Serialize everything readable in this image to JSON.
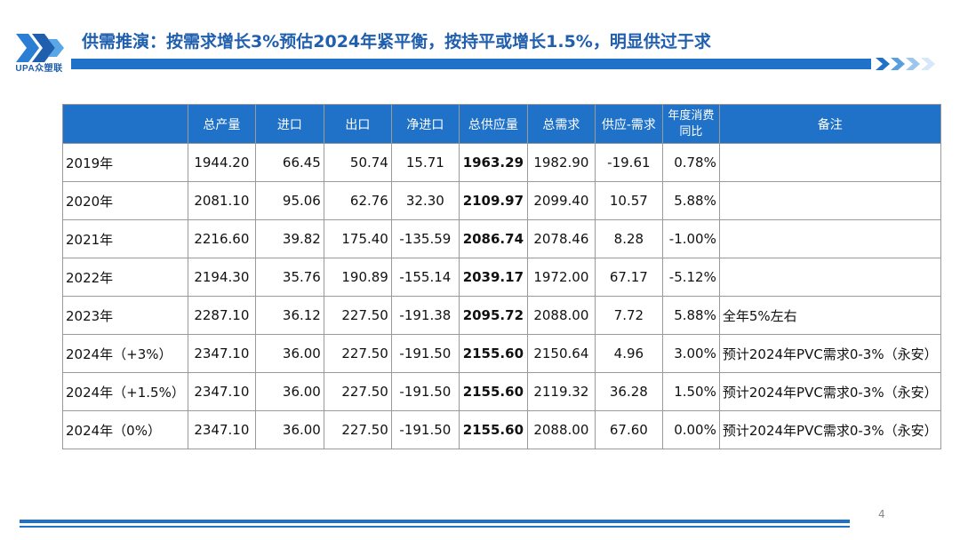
{
  "logo": {
    "text": "UPA众塑联",
    "brand_color": "#1f5fae"
  },
  "title": "供需推演：按需求增长3%预估2024年紧平衡，按持平或增长1.5%，明显供过于求",
  "accent_color": "#1f72c7",
  "table": {
    "headers": [
      "",
      "总产量",
      "进口",
      "出口",
      "净进口",
      "总供应量",
      "总需求",
      "供应-需求",
      "年度消费同比",
      "备注"
    ],
    "header_wrapped": {
      "line1": "年度消费",
      "line2": "同比"
    },
    "rows": [
      {
        "year": "2019年",
        "output": "1944.20",
        "import": "66.45",
        "export": "50.74",
        "net_import": "15.71",
        "supply": "1963.29",
        "demand": "1982.90",
        "gap": "-19.61",
        "yoy": "0.78%",
        "note": ""
      },
      {
        "year": "2020年",
        "output": "2081.10",
        "import": "95.06",
        "export": "62.76",
        "net_import": "32.30",
        "supply": "2109.97",
        "demand": "2099.40",
        "gap": "10.57",
        "yoy": "5.88%",
        "note": ""
      },
      {
        "year": "2021年",
        "output": "2216.60",
        "import": "39.82",
        "export": "175.40",
        "net_import": "-135.59",
        "supply": "2086.74",
        "demand": "2078.46",
        "gap": "8.28",
        "yoy": "-1.00%",
        "note": ""
      },
      {
        "year": "2022年",
        "output": "2194.30",
        "import": "35.76",
        "export": "190.89",
        "net_import": "-155.14",
        "supply": "2039.17",
        "demand": "1972.00",
        "gap": "67.17",
        "yoy": "-5.12%",
        "note": ""
      },
      {
        "year": "2023年",
        "output": "2287.10",
        "import": "36.12",
        "export": "227.50",
        "net_import": "-191.38",
        "supply": "2095.72",
        "demand": "2088.00",
        "gap": "7.72",
        "yoy": "5.88%",
        "note": "全年5%左右"
      },
      {
        "year": "2024年（+3%）",
        "output": "2347.10",
        "import": "36.00",
        "export": "227.50",
        "net_import": "-191.50",
        "supply": "2155.60",
        "demand": "2150.64",
        "gap": "4.96",
        "yoy": "3.00%",
        "note": "预计2024年PVC需求0-3%（永安）"
      },
      {
        "year": "2024年（+1.5%）",
        "output": "2347.10",
        "import": "36.00",
        "export": "227.50",
        "net_import": "-191.50",
        "supply": "2155.60",
        "demand": "2119.32",
        "gap": "36.28",
        "yoy": "1.50%",
        "note": "预计2024年PVC需求0-3%（永安）"
      },
      {
        "year": "2024年（0%）",
        "output": "2347.10",
        "import": "36.00",
        "export": "227.50",
        "net_import": "-191.50",
        "supply": "2155.60",
        "demand": "2088.00",
        "gap": "67.60",
        "yoy": "0.00%",
        "note": "预计2024年PVC需求0-3%（永安）"
      }
    ]
  },
  "page_number": "4"
}
